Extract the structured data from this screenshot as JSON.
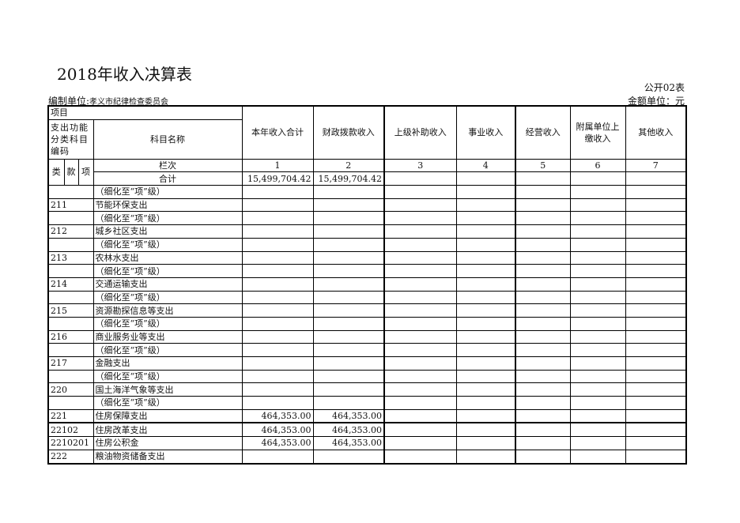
{
  "title": "2018年收入决算表",
  "form_no": "公开02表",
  "org_label": "编制单位:",
  "org_name": "孝义市纪律检查委员会",
  "amount_unit": "金额单位：元",
  "header": {
    "project": "项目",
    "code_label": "支出功能分类科目编码",
    "name_label": "科目名称",
    "lei": "类",
    "kuan": "款",
    "xiang": "项",
    "columns": [
      "本年收入合计",
      "财政拨款收入",
      "上级补助收入",
      "事业收入",
      "经营收入",
      "附属单位上缴收入",
      "其他收入"
    ],
    "lanci_label": "栏次",
    "lanci": [
      "1",
      "2",
      "3",
      "4",
      "5",
      "6",
      "7"
    ],
    "total_label": "合计",
    "total": [
      "15,499,704.42",
      "15,499,704.42",
      "",
      "",
      "",
      "",
      ""
    ]
  },
  "rows": [
    {
      "code": "",
      "name": "（细化至“项”级）",
      "values": [
        "",
        "",
        "",
        "",
        "",
        "",
        ""
      ]
    },
    {
      "code": "211",
      "name": "节能环保支出",
      "values": [
        "",
        "",
        "",
        "",
        "",
        "",
        ""
      ]
    },
    {
      "code": "",
      "name": "（细化至“项”级）",
      "values": [
        "",
        "",
        "",
        "",
        "",
        "",
        ""
      ]
    },
    {
      "code": "212",
      "name": "城乡社区支出",
      "values": [
        "",
        "",
        "",
        "",
        "",
        "",
        ""
      ]
    },
    {
      "code": "",
      "name": "（细化至“项”级）",
      "values": [
        "",
        "",
        "",
        "",
        "",
        "",
        ""
      ]
    },
    {
      "code": "213",
      "name": "农林水支出",
      "values": [
        "",
        "",
        "",
        "",
        "",
        "",
        ""
      ]
    },
    {
      "code": "",
      "name": "（细化至“项”级）",
      "values": [
        "",
        "",
        "",
        "",
        "",
        "",
        ""
      ]
    },
    {
      "code": "214",
      "name": "交通运输支出",
      "values": [
        "",
        "",
        "",
        "",
        "",
        "",
        ""
      ]
    },
    {
      "code": "",
      "name": "（细化至“项”级）",
      "values": [
        "",
        "",
        "",
        "",
        "",
        "",
        ""
      ]
    },
    {
      "code": "215",
      "name": "资源勘探信息等支出",
      "values": [
        "",
        "",
        "",
        "",
        "",
        "",
        ""
      ]
    },
    {
      "code": "",
      "name": "（细化至“项”级）",
      "values": [
        "",
        "",
        "",
        "",
        "",
        "",
        ""
      ]
    },
    {
      "code": "216",
      "name": "商业服务业等支出",
      "values": [
        "",
        "",
        "",
        "",
        "",
        "",
        ""
      ]
    },
    {
      "code": "",
      "name": "（细化至“项”级）",
      "values": [
        "",
        "",
        "",
        "",
        "",
        "",
        ""
      ]
    },
    {
      "code": "217",
      "name": "金融支出",
      "values": [
        "",
        "",
        "",
        "",
        "",
        "",
        ""
      ]
    },
    {
      "code": "",
      "name": "（细化至“项”级）",
      "values": [
        "",
        "",
        "",
        "",
        "",
        "",
        ""
      ]
    },
    {
      "code": "220",
      "name": "国土海洋气象等支出",
      "values": [
        "",
        "",
        "",
        "",
        "",
        "",
        ""
      ]
    },
    {
      "code": "",
      "name": "（细化至“项”级）",
      "values": [
        "",
        "",
        "",
        "",
        "",
        "",
        ""
      ]
    },
    {
      "code": "221",
      "name": "住房保障支出",
      "values": [
        "464,353.00",
        "464,353.00",
        "",
        "",
        "",
        "",
        ""
      ]
    },
    {
      "code": "22102",
      "name": "住房改革支出",
      "values": [
        "464,353.00",
        "464,353.00",
        "",
        "",
        "",
        "",
        ""
      ]
    },
    {
      "code": "2210201",
      "name": "住房公积金",
      "values": [
        "464,353.00",
        "464,353.00",
        "",
        "",
        "",
        "",
        ""
      ]
    },
    {
      "code": "222",
      "name": "粮油物资储备支出",
      "values": [
        "",
        "",
        "",
        "",
        "",
        "",
        ""
      ]
    }
  ]
}
